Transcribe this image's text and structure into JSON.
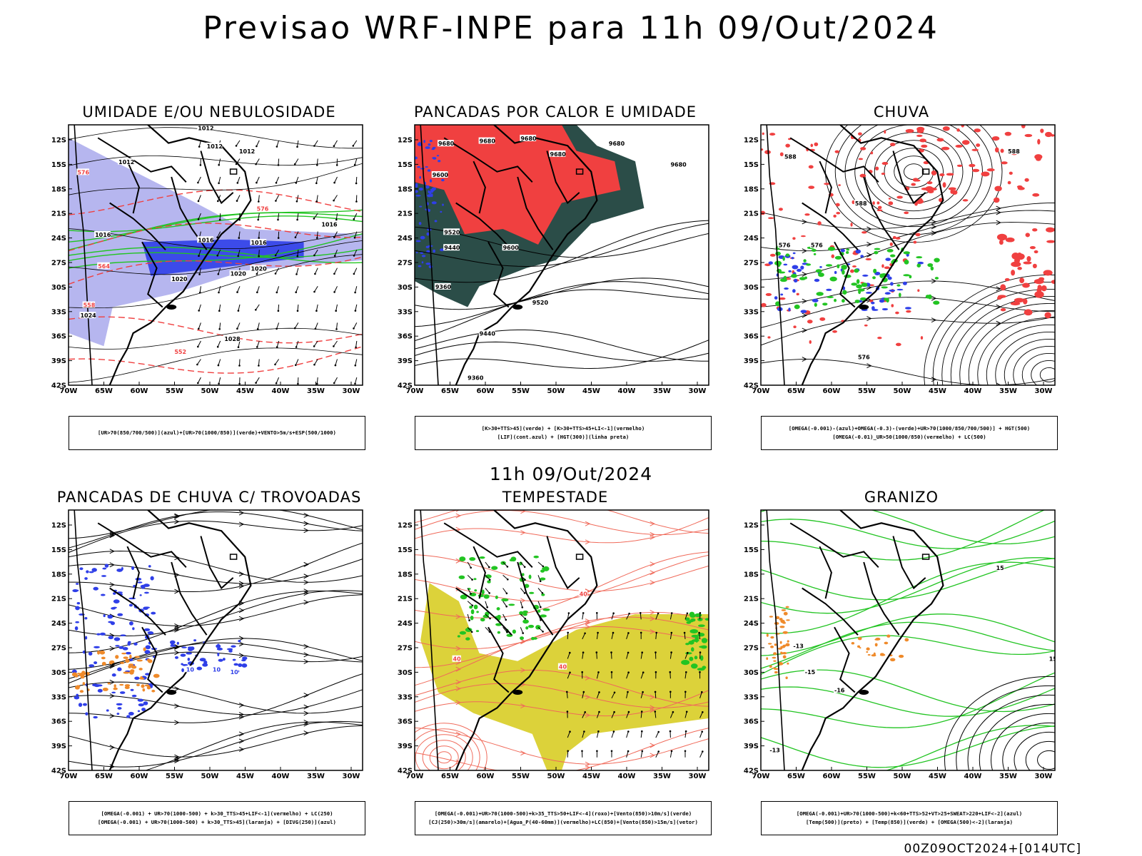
{
  "header": {
    "title": "Previsao WRF-INPE  para 11h 09/Out/2024",
    "middle_date": "11h 09/Out/2024",
    "footer_stamp": "00Z09OCT2024+[014UTC]"
  },
  "axes": {
    "lat_labels": [
      "12S",
      "15S",
      "18S",
      "21S",
      "24S",
      "27S",
      "30S",
      "33S",
      "36S",
      "39S",
      "42S"
    ],
    "lon_labels": [
      "70W",
      "65W",
      "60W",
      "55W",
      "50W",
      "45W",
      "40W",
      "35W",
      "30W"
    ]
  },
  "colors": {
    "blue": "#2f3fe8",
    "light_purple": "#a9a9ec",
    "green": "#22c422",
    "red": "#f04040",
    "dark_teal": "#2b4d48",
    "yellow": "#dcd23a",
    "orange": "#ef8a2a",
    "salmon": "#f06a5a"
  },
  "panels": [
    {
      "id": "p1",
      "title": "UMIDADE E/OU NEBULOSIDADE",
      "legend": [
        "[UR>70(850/700/500)](azul)+[UR>70(1000/850)](verde)+VENTO>5m/s+ESP(500/1000)"
      ],
      "contour_labels": [
        "1012",
        "1012",
        "1012",
        "1012",
        "1016",
        "1016",
        "1016",
        "1016",
        "1020",
        "1020",
        "1020",
        "1024",
        "1028",
        "576",
        "576",
        "564",
        "558",
        "552"
      ]
    },
    {
      "id": "p2",
      "title": "PANCADAS POR CALOR E UMIDADE",
      "legend": [
        "[K>30+TTS>45](verde) + [K>30+TTS>45+LI<-1](vermelho)",
        "[LIF](cont.azul) + [HGT(300)](linha preta)"
      ],
      "contour_labels": [
        "9680",
        "9680",
        "9680",
        "9680",
        "9680",
        "9680",
        "9600",
        "9520",
        "9440",
        "9360",
        "9600",
        "9520",
        "9440",
        "9360"
      ]
    },
    {
      "id": "p3",
      "title": "CHUVA",
      "legend": [
        "[OMEGA(-0.001)-(azul)+OMEGA(-0.3)-(verde)+UR>70(1000/850/700/500)] + HGT(500)",
        "[OMEGA(-0.01)_UR>50(1000/850)(vermelho) + LC(500)"
      ],
      "contour_labels": [
        "588",
        "588",
        "588",
        "576",
        "576",
        "576"
      ]
    },
    {
      "id": "p4",
      "title": "PANCADAS DE CHUVA C/ TROVOADAS",
      "legend": [
        "[OMEGA(-0.001) + UR>70(1000-500) + k>30_TTS>45+LIF<-1](vermelho) + LC(250)",
        "[OMEGA(-0.001) + UR>70(1000-500) + k>30_TTS>45](laranja) + [DIVG(250)](azul)"
      ],
      "contour_labels": [
        "10",
        "10",
        "10"
      ]
    },
    {
      "id": "p5",
      "title": "TEMPESTADE",
      "legend": [
        "[OMEGA(-0.001)+UR>70(1000-500)+k>35_TTS>50+LIF<-4](roxo)+[Vento(850)>10m/s](verde)",
        "[CJ(250)>30m/s](amarelo)+[Agua_P(40-60mm)](vermelho)+LC(850)+[Vento(850)>15m/s](vetor)"
      ],
      "contour_labels": [
        "40",
        "40",
        "40"
      ]
    },
    {
      "id": "p6",
      "title": "GRANIZO",
      "legend": [
        "[OMEGA(-0.001)+UR>70(1000-500)+k<60+TTS>52+VT>25+SWEAT>220+LIF<-2](azul)",
        "[Temp(500)](preto) + [Temp(850)](verde) + [OMEGA(500)<-2](laranja)"
      ],
      "contour_labels": [
        "-13",
        "-15",
        "-16",
        "-13",
        "15",
        "15"
      ]
    }
  ]
}
